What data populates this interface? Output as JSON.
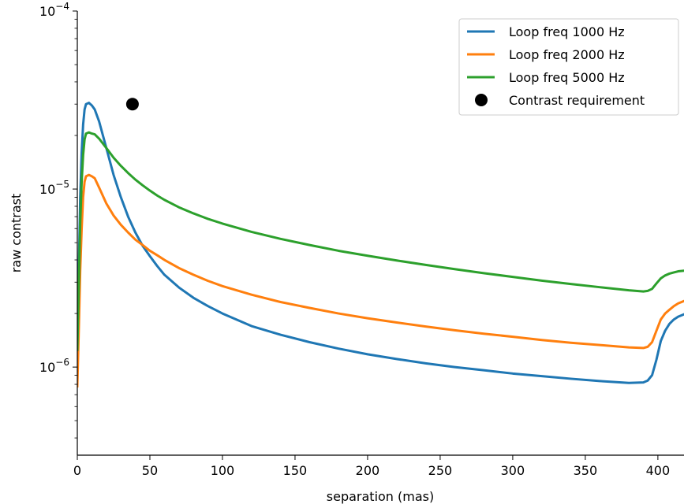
{
  "chart_data": {
    "type": "line",
    "xlabel": "separation (mas)",
    "ylabel": "raw contrast",
    "xlim": [
      0,
      418
    ],
    "ylim": [
      3.2e-07,
      0.0001
    ],
    "y_scale": "log",
    "grid": false,
    "legend_position": "top-right",
    "x_ticks": [
      0,
      50,
      100,
      150,
      200,
      250,
      300,
      350,
      400
    ],
    "x_tick_labels": [
      "0",
      "50",
      "100",
      "150",
      "200",
      "250",
      "300",
      "350",
      "400"
    ],
    "y_ticks": [
      1e-06,
      1e-05,
      0.0001
    ],
    "y_tick_labels": [
      {
        "base": "10",
        "exp": "−6"
      },
      {
        "base": "10",
        "exp": "−5"
      },
      {
        "base": "10",
        "exp": "−4"
      }
    ],
    "series": [
      {
        "name": "Loop freq 1000 Hz",
        "color": "#1f77b4",
        "x": [
          0,
          1,
          2,
          3,
          4,
          5,
          6,
          8,
          10,
          12,
          15,
          20,
          25,
          30,
          35,
          40,
          45,
          50,
          55,
          60,
          70,
          80,
          90,
          100,
          120,
          140,
          160,
          180,
          200,
          220,
          240,
          260,
          280,
          300,
          320,
          340,
          360,
          380,
          390,
          393,
          396,
          399,
          402,
          405,
          408,
          411,
          414,
          418
        ],
        "y": [
          1.35e-06,
          3.5e-06,
          9e-06,
          1.6e-05,
          2.3e-05,
          2.8e-05,
          3e-05,
          3.05e-05,
          2.95e-05,
          2.8e-05,
          2.4e-05,
          1.7e-05,
          1.2e-05,
          9e-06,
          7e-06,
          5.7e-06,
          4.8e-06,
          4.2e-06,
          3.7e-06,
          3.3e-06,
          2.8e-06,
          2.45e-06,
          2.2e-06,
          2e-06,
          1.7e-06,
          1.52e-06,
          1.38e-06,
          1.27e-06,
          1.18e-06,
          1.11e-06,
          1.05e-06,
          1e-06,
          9.6e-07,
          9.2e-07,
          8.9e-07,
          8.6e-07,
          8.35e-07,
          8.15e-07,
          8.2e-07,
          8.4e-07,
          9e-07,
          1.1e-06,
          1.4e-06,
          1.6e-06,
          1.75e-06,
          1.85e-06,
          1.92e-06,
          1.98e-06
        ]
      },
      {
        "name": "Loop freq 2000 Hz",
        "color": "#ff7f0e",
        "x": [
          0,
          1,
          2,
          3,
          4,
          5,
          6,
          8,
          10,
          12,
          15,
          20,
          25,
          30,
          35,
          40,
          45,
          50,
          55,
          60,
          70,
          80,
          90,
          100,
          120,
          140,
          160,
          180,
          200,
          220,
          240,
          260,
          280,
          300,
          320,
          340,
          360,
          380,
          390,
          393,
          396,
          399,
          402,
          405,
          408,
          411,
          414,
          418
        ],
        "y": [
          7.8e-07,
          1.6e-06,
          3.5e-06,
          6e-06,
          9e-06,
          1.1e-05,
          1.18e-05,
          1.2e-05,
          1.18e-05,
          1.15e-05,
          1.02e-05,
          8.3e-06,
          7.1e-06,
          6.3e-06,
          5.7e-06,
          5.2e-06,
          4.85e-06,
          4.5e-06,
          4.25e-06,
          4e-06,
          3.6e-06,
          3.3e-06,
          3.05e-06,
          2.85e-06,
          2.55e-06,
          2.32e-06,
          2.15e-06,
          2e-06,
          1.88e-06,
          1.78e-06,
          1.69e-06,
          1.61e-06,
          1.54e-06,
          1.48e-06,
          1.42e-06,
          1.37e-06,
          1.33e-06,
          1.29e-06,
          1.28e-06,
          1.3e-06,
          1.38e-06,
          1.6e-06,
          1.85e-06,
          2e-06,
          2.1e-06,
          2.2e-06,
          2.28e-06,
          2.35e-06
        ]
      },
      {
        "name": "Loop freq 5000 Hz",
        "color": "#2ca02c",
        "x": [
          0,
          1,
          2,
          3,
          4,
          5,
          6,
          8,
          10,
          12,
          15,
          20,
          25,
          30,
          35,
          40,
          45,
          50,
          55,
          60,
          70,
          80,
          90,
          100,
          120,
          140,
          160,
          180,
          200,
          220,
          240,
          260,
          280,
          300,
          320,
          340,
          360,
          380,
          390,
          393,
          396,
          399,
          402,
          405,
          408,
          411,
          414,
          418
        ],
        "y": [
          1.25e-06,
          2.8e-06,
          6.5e-06,
          1.1e-05,
          1.55e-05,
          1.9e-05,
          2.05e-05,
          2.08e-05,
          2.05e-05,
          2.03e-05,
          1.92e-05,
          1.7e-05,
          1.5e-05,
          1.35e-05,
          1.23e-05,
          1.13e-05,
          1.05e-05,
          9.8e-06,
          9.2e-06,
          8.7e-06,
          7.9e-06,
          7.3e-06,
          6.8e-06,
          6.4e-06,
          5.75e-06,
          5.25e-06,
          4.85e-06,
          4.5e-06,
          4.22e-06,
          3.97e-06,
          3.75e-06,
          3.55e-06,
          3.37e-06,
          3.21e-06,
          3.06e-06,
          2.93e-06,
          2.81e-06,
          2.7e-06,
          2.66e-06,
          2.68e-06,
          2.75e-06,
          2.95e-06,
          3.15e-06,
          3.27e-06,
          3.35e-06,
          3.4e-06,
          3.45e-06,
          3.48e-06
        ]
      }
    ],
    "points": [
      {
        "name": "Contrast requirement",
        "color": "#000000",
        "x": [
          38
        ],
        "y": [
          3e-05
        ]
      }
    ]
  }
}
